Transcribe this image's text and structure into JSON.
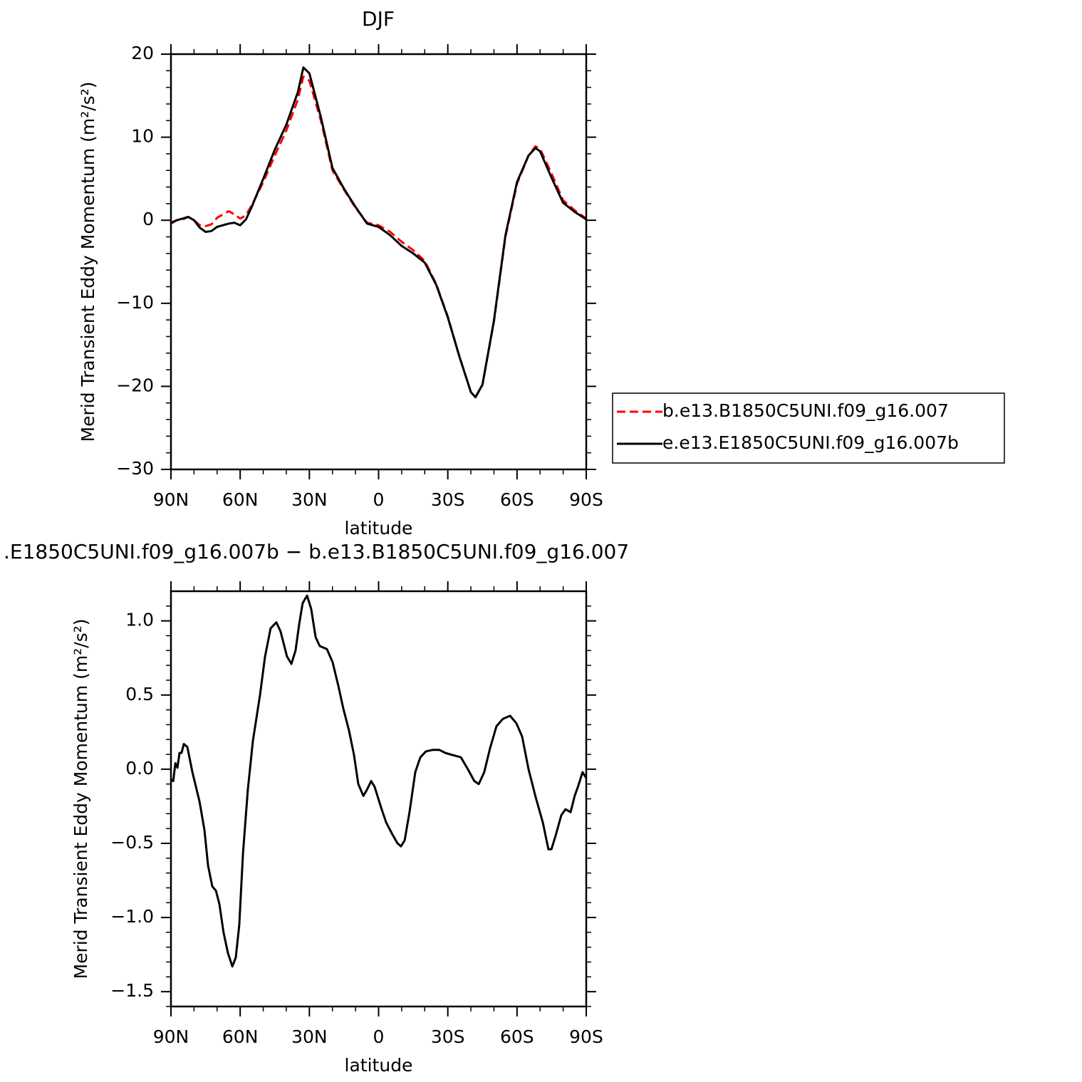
{
  "chart_data": [
    {
      "type": "line",
      "title": "DJF",
      "xlabel": "latitude",
      "ylabel": "Merid Transient Eddy Momentum (m²/s²)",
      "x": [
        90,
        87.5,
        85,
        82.5,
        80,
        77.5,
        75,
        72.5,
        70,
        65,
        62.5,
        60,
        57.5,
        55,
        50,
        45,
        40,
        35,
        32.6,
        30,
        25,
        20,
        15,
        10,
        5,
        0,
        -5,
        -10,
        -15,
        -20,
        -25,
        -30,
        -35,
        -40,
        -42,
        -45,
        -50,
        -55,
        -60,
        -65,
        -68,
        -70,
        -75,
        -80,
        -85,
        -90
      ],
      "series": [
        {
          "name": "b.e13.B1850C5UNI.f09_g16.007",
          "color": "#ff0000",
          "style": "dashed",
          "values": [
            -0.4,
            0,
            0.1,
            0.4,
            0,
            -0.6,
            -0.7,
            -0.5,
            0.3,
            1.1,
            0.7,
            0.2,
            0.6,
            1.8,
            4.6,
            7.8,
            10.8,
            14.5,
            17.3,
            16.8,
            12.0,
            6.0,
            3.7,
            1.5,
            -0.3,
            -0.6,
            -1.4,
            -2.6,
            -3.6,
            -4.9,
            -7.7,
            -11.6,
            -16.4,
            -20.7,
            -21.3,
            -19.8,
            -12.2,
            -2.0,
            4.4,
            7.8,
            8.9,
            8.6,
            5.6,
            2.4,
            1.2,
            0.2
          ]
        },
        {
          "name": "e.e13.E1850C5UNI.f09_g16.007b",
          "color": "#000000",
          "style": "solid",
          "values": [
            -0.3,
            0,
            0.2,
            0.4,
            0,
            -0.9,
            -1.4,
            -1.3,
            -0.8,
            -0.4,
            -0.3,
            -0.6,
            0.1,
            1.6,
            5.0,
            8.5,
            11.5,
            15.4,
            18.4,
            17.7,
            12.4,
            6.3,
            3.8,
            1.6,
            -0.4,
            -0.8,
            -1.8,
            -3.1,
            -4.0,
            -5.1,
            -7.8,
            -11.7,
            -16.4,
            -20.7,
            -21.3,
            -19.8,
            -12.1,
            -1.8,
            4.6,
            7.8,
            8.7,
            8.3,
            5.1,
            2.1,
            1.0,
            0.1
          ]
        }
      ],
      "xlim": [
        90,
        -90
      ],
      "xticks": [
        {
          "value": 90,
          "label": "90N"
        },
        {
          "value": 60,
          "label": "60N"
        },
        {
          "value": 30,
          "label": "30N"
        },
        0,
        {
          "value": -30,
          "label": "30S"
        },
        {
          "value": -60,
          "label": "60S"
        },
        {
          "value": -90,
          "label": "90S"
        }
      ],
      "minor_xticks": [
        80,
        70,
        50,
        40,
        20,
        10,
        -10,
        -20,
        -40,
        -50,
        -70,
        -80
      ],
      "ylim": [
        -30,
        20
      ],
      "yticks": [
        20,
        10,
        0,
        {
          "value": -10,
          "label": "−10"
        },
        {
          "value": -20,
          "label": "−20"
        },
        {
          "value": -30,
          "label": "−30"
        }
      ],
      "minor_yticks": [
        18,
        16,
        14,
        12,
        8,
        6,
        4,
        2,
        -2,
        -4,
        -6,
        -8,
        -12,
        -14,
        -16,
        -18,
        -22,
        -24,
        -26,
        -28
      ],
      "legend": "right"
    },
    {
      "type": "line",
      "title": ".E1850C5UNI.f09_g16.007b − b.e13.B1850C5UNI.f09_g16.007",
      "xlabel": "latitude",
      "ylabel": "Merid Transient Eddy Momentum (m²/s²)",
      "x": [
        90,
        89,
        88.1,
        87.2,
        86.3,
        85.4,
        84.4,
        82.9,
        80.7,
        77.6,
        75.5,
        73.9,
        72.1,
        70.5,
        69,
        67.2,
        65.3,
        63.4,
        61.9,
        60.4,
        58.8,
        56.7,
        54.5,
        51.4,
        49.2,
        46.8,
        44.3,
        42.5,
        39.7,
        37.8,
        36,
        34.4,
        32.9,
        31,
        29.2,
        27.3,
        25.5,
        22.4,
        19.9,
        17.4,
        15.3,
        12.8,
        10.7,
        8.8,
        6.6,
        5.1,
        3.2,
        1.7,
        -1.1,
        -3.3,
        -6,
        -8.2,
        -9.7,
        -11.3,
        -13.4,
        -15.9,
        -18.1,
        -20.5,
        -23.3,
        -26.4,
        -28.9,
        -31,
        -35.7,
        -38.7,
        -41.5,
        -43.4,
        -45.8,
        -48.3,
        -51.1,
        -53.9,
        -57,
        -59.7,
        -62.2,
        -65,
        -68.1,
        -71.2,
        -73.6,
        -74.9,
        -76.7,
        -79.2,
        -81,
        -83.2,
        -85,
        -86.6,
        -88.4,
        -90
      ],
      "values": [
        -0.07,
        -0.08,
        0.04,
        0.01,
        0.11,
        0.11,
        0.17,
        0.15,
        -0.02,
        -0.22,
        -0.41,
        -0.65,
        -0.79,
        -0.82,
        -0.91,
        -1.1,
        -1.24,
        -1.33,
        -1.27,
        -1.05,
        -0.57,
        -0.14,
        0.19,
        0.5,
        0.76,
        0.95,
        0.99,
        0.93,
        0.76,
        0.71,
        0.8,
        0.98,
        1.12,
        1.17,
        1.08,
        0.89,
        0.83,
        0.81,
        0.72,
        0.56,
        0.41,
        0.26,
        0.1,
        -0.1,
        -0.18,
        -0.14,
        -0.08,
        -0.12,
        -0.26,
        -0.36,
        -0.44,
        -0.5,
        -0.52,
        -0.48,
        -0.29,
        -0.02,
        0.08,
        0.12,
        0.13,
        0.13,
        0.11,
        0.1,
        0.08,
        0,
        -0.08,
        -0.1,
        -0.02,
        0.14,
        0.29,
        0.34,
        0.36,
        0.31,
        0.22,
        0,
        -0.19,
        -0.36,
        -0.54,
        -0.54,
        -0.45,
        -0.31,
        -0.27,
        -0.29,
        -0.18,
        -0.11,
        -0.02,
        -0.06
      ],
      "color": "#000000",
      "xlim": [
        90,
        -90
      ],
      "xticks": [
        {
          "value": 90,
          "label": "90N"
        },
        {
          "value": 60,
          "label": "60N"
        },
        {
          "value": 30,
          "label": "30N"
        },
        0,
        {
          "value": -30,
          "label": "30S"
        },
        {
          "value": -60,
          "label": "60S"
        },
        {
          "value": -90,
          "label": "90S"
        }
      ],
      "minor_xticks": [
        80,
        70,
        50,
        40,
        20,
        10,
        -10,
        -20,
        -40,
        -50,
        -70,
        -80
      ],
      "ylim": [
        -1.6,
        1.2
      ],
      "yticks": [
        {
          "value": 1.0,
          "label": "1.0"
        },
        0.5,
        {
          "value": 0,
          "label": "0.0"
        },
        {
          "value": -0.5,
          "label": "−0.5"
        },
        {
          "value": -1.0,
          "label": "−1.0"
        },
        {
          "value": -1.5,
          "label": "−1.5"
        }
      ],
      "minor_yticks": [
        1.1,
        0.9,
        0.8,
        0.7,
        0.6,
        0.4,
        0.3,
        0.2,
        0.1,
        -0.1,
        -0.2,
        -0.3,
        -0.4,
        -0.6,
        -0.7,
        -0.8,
        -0.9,
        -1.1,
        -1.2,
        -1.3,
        -1.4,
        -1.6
      ]
    }
  ]
}
